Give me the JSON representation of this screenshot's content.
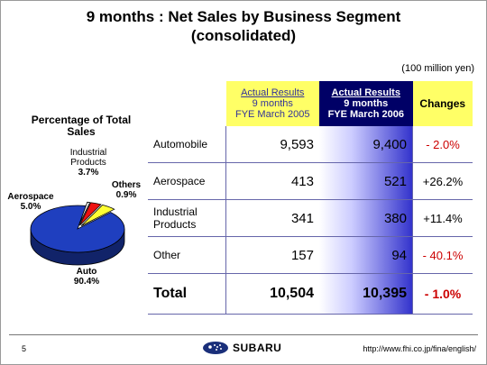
{
  "slide": {
    "title_line1": "9 months : Net Sales by Business Segment",
    "title_line2": "(consolidated)",
    "unit": "(100 million yen)",
    "page_number": "5",
    "logo_text": "SUBARU",
    "url": "http://www.fhi.co.jp/fina/english/"
  },
  "table": {
    "col1_line1": "Actual Results",
    "col1_line2": "9 months",
    "col1_line3": "FYE March 2005",
    "col2_line1": "Actual Results",
    "col2_line2": "9 months",
    "col2_line3": "FYE March 2006",
    "col3": "Changes",
    "rows": [
      {
        "name": "Automobile",
        "prev": "9,593",
        "curr": "9,400",
        "change": "- 2.0%"
      },
      {
        "name": "Aerospace",
        "prev": "413",
        "curr": "521",
        "change": "+26.2%"
      },
      {
        "name": "Industrial Products",
        "prev": "341",
        "curr": "380",
        "change": "+11.4%"
      },
      {
        "name": "Other",
        "prev": "157",
        "curr": "94",
        "change": "- 40.1%"
      }
    ],
    "total": {
      "name": "Total",
      "prev": "10,504",
      "curr": "10,395",
      "change": "- 1.0%"
    }
  },
  "chart_data": {
    "type": "pie",
    "title": "Percentage of Total Sales",
    "slices": [
      {
        "label": "Auto",
        "value": 90.4,
        "pct": "90.4%",
        "color": "#1f3fbf"
      },
      {
        "label": "Aerospace",
        "value": 5.0,
        "pct": "5.0%",
        "color": "#ffff33"
      },
      {
        "label": "Industrial Products",
        "value": 3.7,
        "pct": "3.7%",
        "color": "#ee1111"
      },
      {
        "label": "Others",
        "value": 0.9,
        "pct": "0.9%",
        "color": "#ffffff"
      }
    ]
  }
}
